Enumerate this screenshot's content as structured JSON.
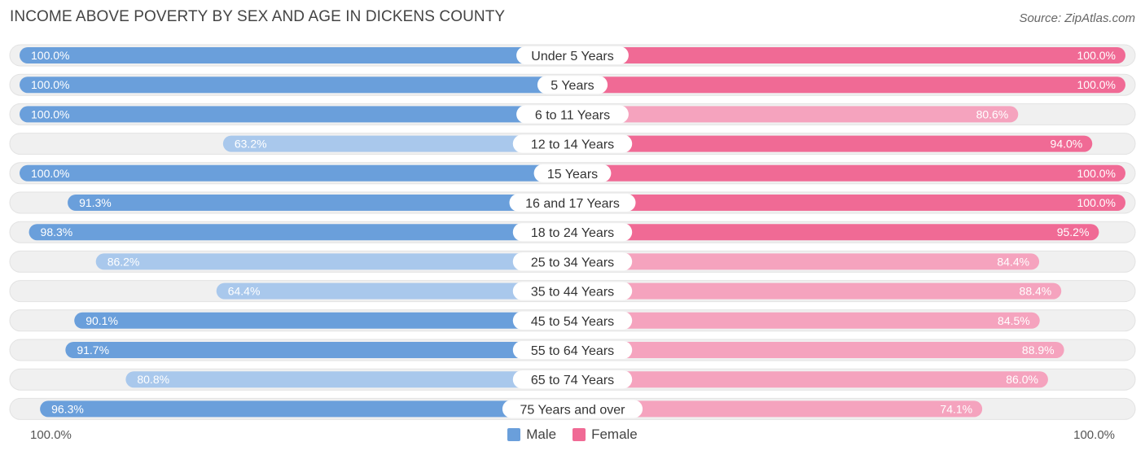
{
  "title": "INCOME ABOVE POVERTY BY SEX AND AGE IN DICKENS COUNTY",
  "source": "Source: ZipAtlas.com",
  "axis": {
    "left_label": "100.0%",
    "right_label": "100.0%"
  },
  "legend": [
    {
      "label": "Male",
      "color": "#6a9fdb"
    },
    {
      "label": "Female",
      "color": "#f06a95"
    }
  ],
  "colors": {
    "male_strong": "#6a9fdb",
    "male_light": "#a9c8ec",
    "female_strong": "#f06a95",
    "female_light": "#f5a3be",
    "track": "#f0f0f0"
  },
  "chart_data": {
    "type": "bar",
    "orientation": "horizontal-diverging",
    "title": "INCOME ABOVE POVERTY BY SEX AND AGE IN DICKENS COUNTY",
    "xlim": [
      0,
      100
    ],
    "categories": [
      "Under 5 Years",
      "5 Years",
      "6 to 11 Years",
      "12 to 14 Years",
      "15 Years",
      "16 and 17 Years",
      "18 to 24 Years",
      "25 to 34 Years",
      "35 to 44 Years",
      "45 to 54 Years",
      "55 to 64 Years",
      "65 to 74 Years",
      "75 Years and over"
    ],
    "series": [
      {
        "name": "Male",
        "values": [
          100.0,
          100.0,
          100.0,
          63.2,
          100.0,
          91.3,
          98.3,
          86.2,
          64.4,
          90.1,
          91.7,
          80.8,
          96.3
        ],
        "labels": [
          "100.0%",
          "100.0%",
          "100.0%",
          "63.2%",
          "100.0%",
          "91.3%",
          "98.3%",
          "86.2%",
          "64.4%",
          "90.1%",
          "91.7%",
          "80.8%",
          "96.3%"
        ]
      },
      {
        "name": "Female",
        "values": [
          100.0,
          100.0,
          80.6,
          94.0,
          100.0,
          100.0,
          95.2,
          84.4,
          88.4,
          84.5,
          88.9,
          86.0,
          74.1
        ],
        "labels": [
          "100.0%",
          "100.0%",
          "80.6%",
          "94.0%",
          "100.0%",
          "100.0%",
          "95.2%",
          "84.4%",
          "88.4%",
          "84.5%",
          "88.9%",
          "86.0%",
          "74.1%"
        ]
      }
    ]
  }
}
